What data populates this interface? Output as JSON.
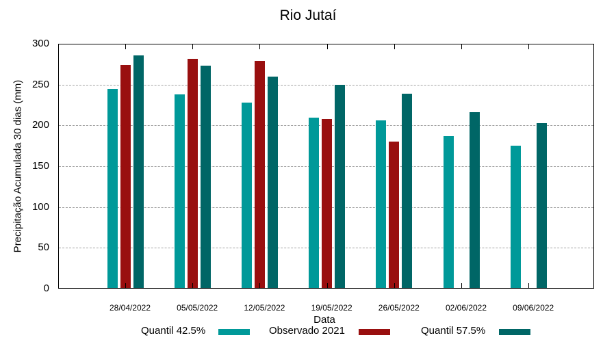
{
  "chart_data": {
    "type": "bar",
    "title": "Rio Jutaí",
    "xlabel": "Data",
    "ylabel": "Precipitação Acumulada 30 dias (mm)",
    "ylim": [
      0,
      300
    ],
    "yticks": [
      "0",
      "50",
      "100",
      "150",
      "200",
      "250",
      "300"
    ],
    "grid": true,
    "legend_position": "bottom",
    "categories": [
      "28/04/2022",
      "05/05/2022",
      "12/05/2022",
      "19/05/2022",
      "26/05/2022",
      "02/06/2022",
      "09/06/2022"
    ],
    "series": [
      {
        "name": "Quantil 42.5%",
        "color": "#009999",
        "values": [
          244,
          237,
          227,
          209,
          205,
          186,
          174
        ]
      },
      {
        "name": "Observado 2021",
        "color": "#990f0f",
        "values": [
          273,
          281,
          278,
          207,
          179,
          null,
          null
        ]
      },
      {
        "name": "Quantil 57.5%",
        "color": "#006666",
        "values": [
          285,
          272,
          259,
          249,
          238,
          215,
          202
        ]
      }
    ]
  }
}
